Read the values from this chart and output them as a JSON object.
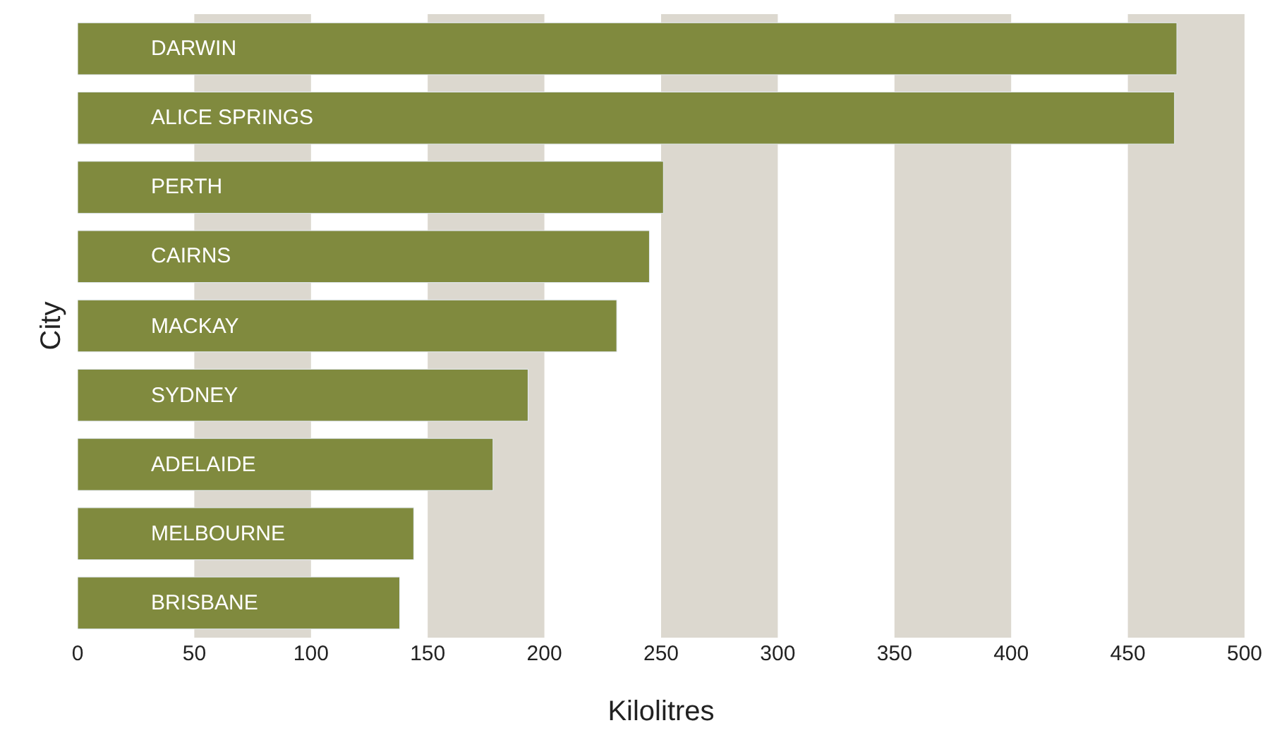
{
  "chart_data": {
    "type": "bar",
    "orientation": "horizontal",
    "xlabel": "Kilolitres",
    "ylabel": "City",
    "categories": [
      "DARWIN",
      "ALICE SPRINGS",
      "PERTH",
      "CAIRNS",
      "MACKAY",
      "SYDNEY",
      "ADELAIDE",
      "MELBOURNE",
      "BRISBANE"
    ],
    "values": [
      471,
      470,
      251,
      245,
      231,
      193,
      178,
      144,
      138
    ],
    "color": "#808a3e",
    "xlim": [
      0,
      500
    ],
    "xticks": [
      0,
      50,
      100,
      150,
      200,
      250,
      300,
      350,
      400,
      450,
      500
    ],
    "tick_labels": "x",
    "grid": false,
    "bands": [
      {
        "axis": "x",
        "from": 50,
        "to": 100,
        "color": "#dcd8cf"
      },
      {
        "axis": "x",
        "from": 150,
        "to": 200,
        "color": "#dcd8cf"
      },
      {
        "axis": "x",
        "from": 250,
        "to": 300,
        "color": "#dcd8cf"
      },
      {
        "axis": "x",
        "from": 350,
        "to": 400,
        "color": "#dcd8cf"
      },
      {
        "axis": "x",
        "from": 450,
        "to": 500,
        "color": "#dcd8cf"
      }
    ]
  }
}
